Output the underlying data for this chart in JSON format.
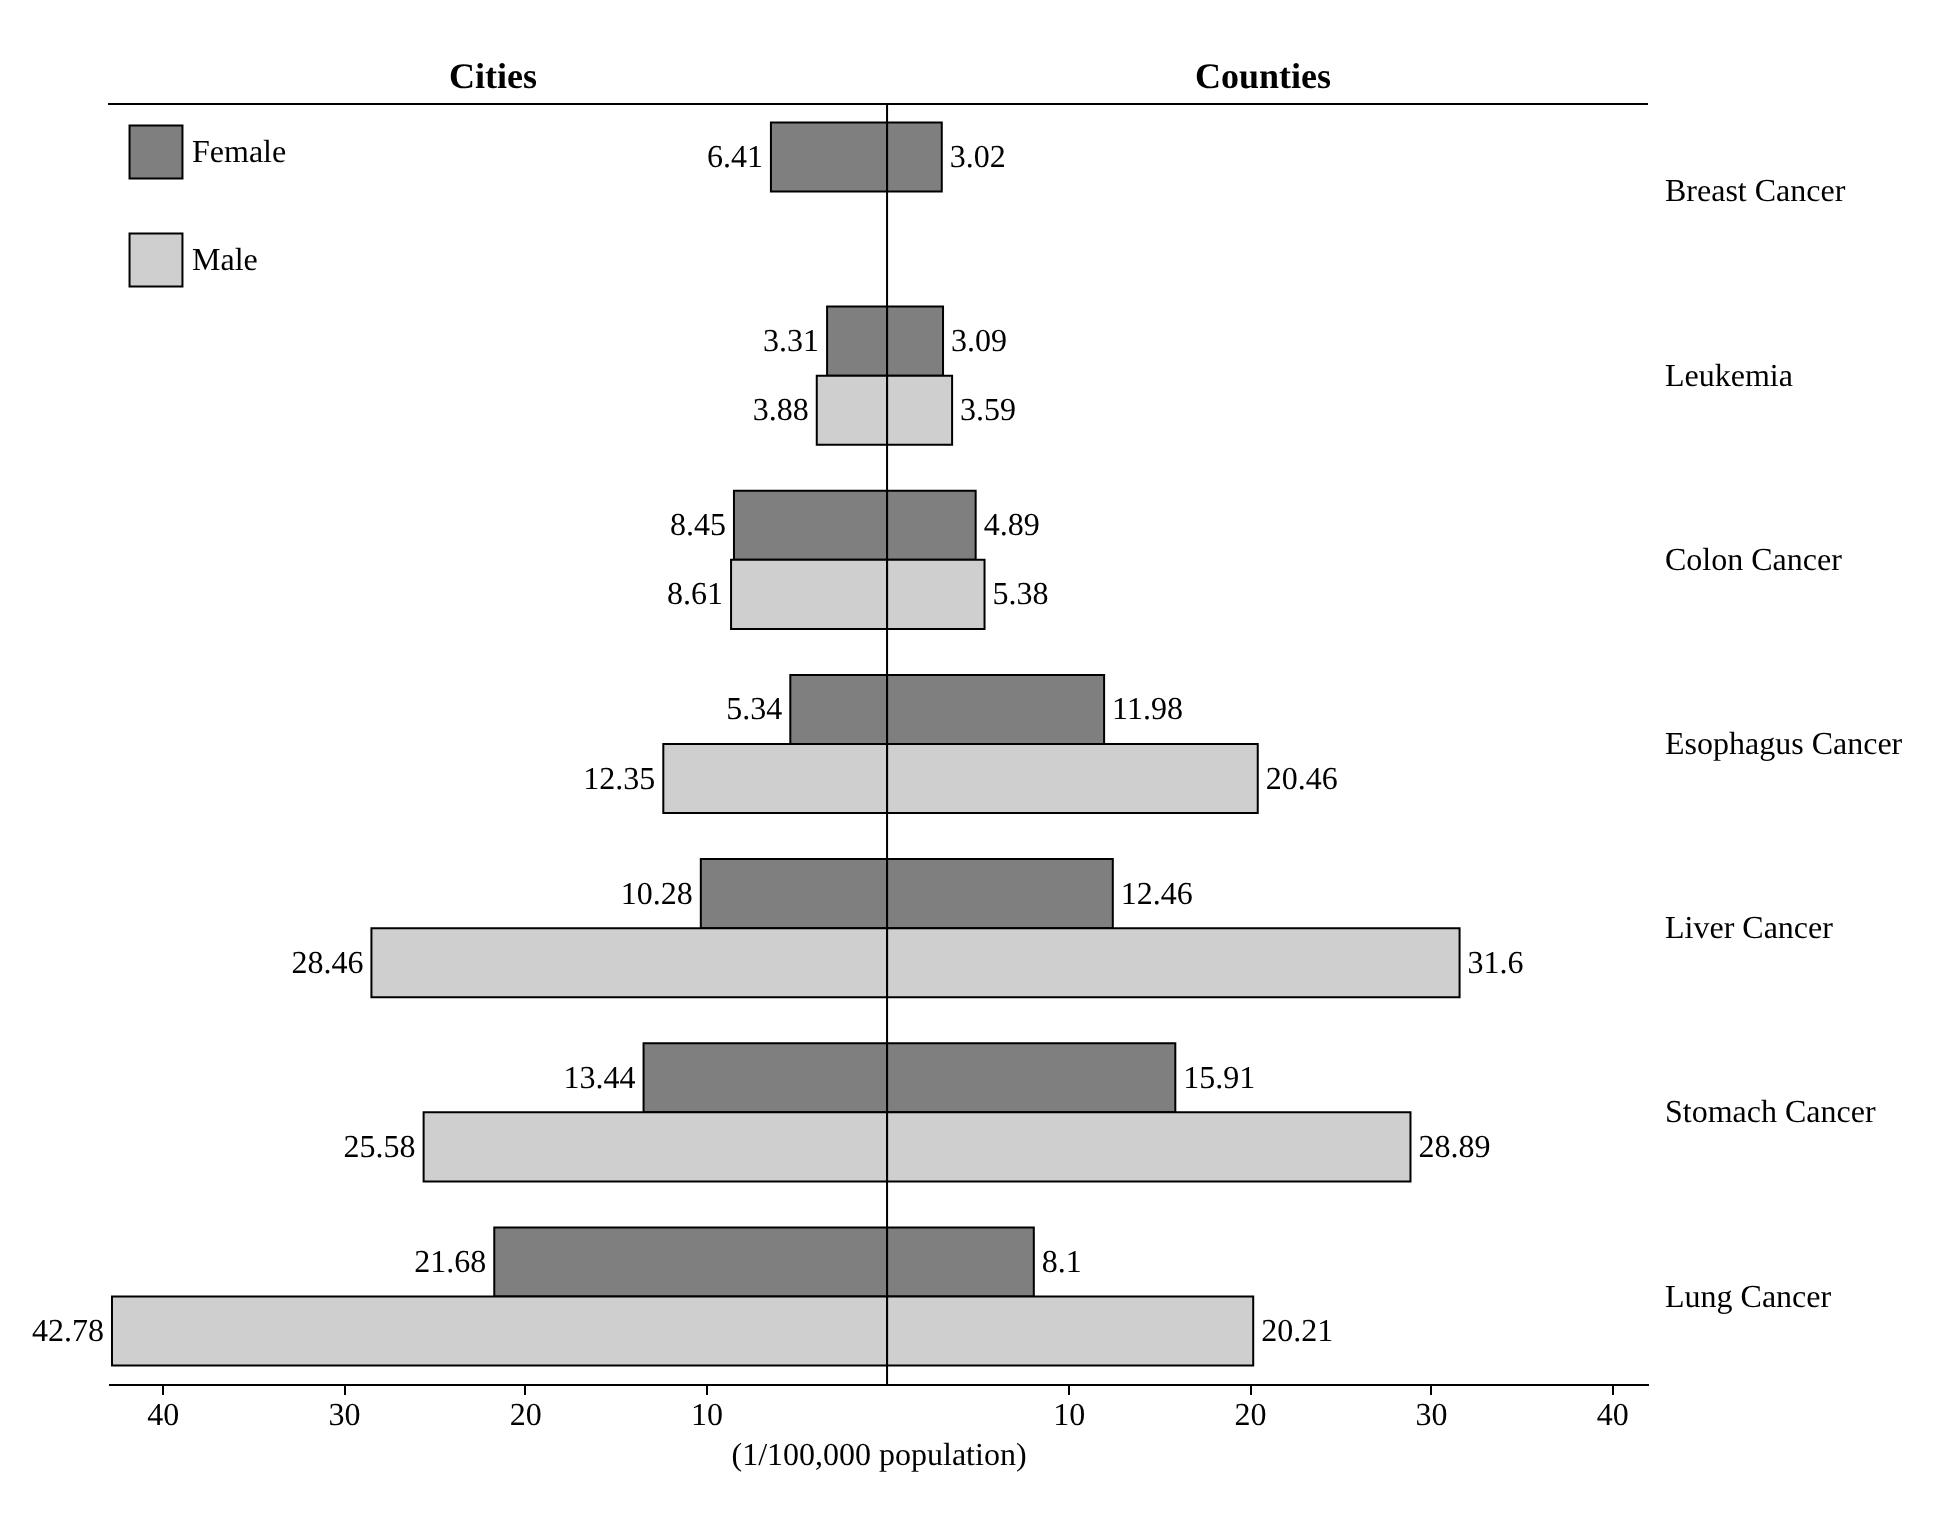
{
  "chart_data": {
    "type": "bar",
    "orientation": "horizontal",
    "xlabel": "(1/100,000 population)",
    "annotations": [
      "Cities",
      "Counties"
    ],
    "categories": [
      "Breast Cancer",
      "Leukemia",
      "Colon Cancer",
      "Esophagus Cancer",
      "Liver Cancer",
      "Stomach Cancer",
      "Lung Cancer"
    ],
    "series": [
      {
        "name": "Female",
        "color": "#7f7f7f",
        "base": [
          -6.41,
          -3.31,
          -8.45,
          -5.34,
          -10.28,
          -13.44,
          -21.68
        ],
        "values": [
          6.41,
          3.31,
          8.45,
          5.34,
          10.28,
          13.44,
          21.68
        ],
        "value_labels": [
          "6.41",
          "3.31",
          "8.45",
          "5.34",
          "10.28",
          "13.44",
          "21.68"
        ]
      },
      {
        "color": "#7f7f7f",
        "values": [
          3.02,
          3.09,
          4.89,
          11.98,
          12.46,
          15.91,
          8.1
        ],
        "value_labels": [
          "3.02",
          "3.09",
          "4.89",
          "11.98",
          "12.46",
          "15.91",
          "8.1"
        ]
      },
      {
        "name": "Male",
        "color": "#cfcfcf",
        "base": [
          null,
          -3.88,
          -8.61,
          -12.35,
          -28.46,
          -25.58,
          -42.78
        ],
        "values": [
          null,
          3.88,
          8.61,
          12.35,
          28.46,
          25.58,
          42.78
        ],
        "value_labels": [
          null,
          "3.88",
          "8.61",
          "12.35",
          "28.46",
          "25.58",
          "42.78"
        ]
      },
      {
        "color": "#cfcfcf",
        "values": [
          null,
          3.59,
          5.38,
          20.46,
          31.6,
          28.89,
          20.21
        ],
        "value_labels": [
          null,
          "3.59",
          "5.38",
          "20.46",
          "31.6",
          "28.89",
          "20.21"
        ]
      }
    ],
    "xlim": [
      -43,
      42
    ],
    "xticks": [
      {
        "value": -40,
        "label": "40"
      },
      {
        "value": -30,
        "label": "30"
      },
      {
        "value": -20,
        "label": "20"
      },
      {
        "value": -10,
        "label": "10"
      },
      10,
      20,
      30,
      40
    ],
    "ref_lines": [
      {
        "axis": "x",
        "value": 0
      }
    ],
    "legend": "top left",
    "grid": false
  }
}
